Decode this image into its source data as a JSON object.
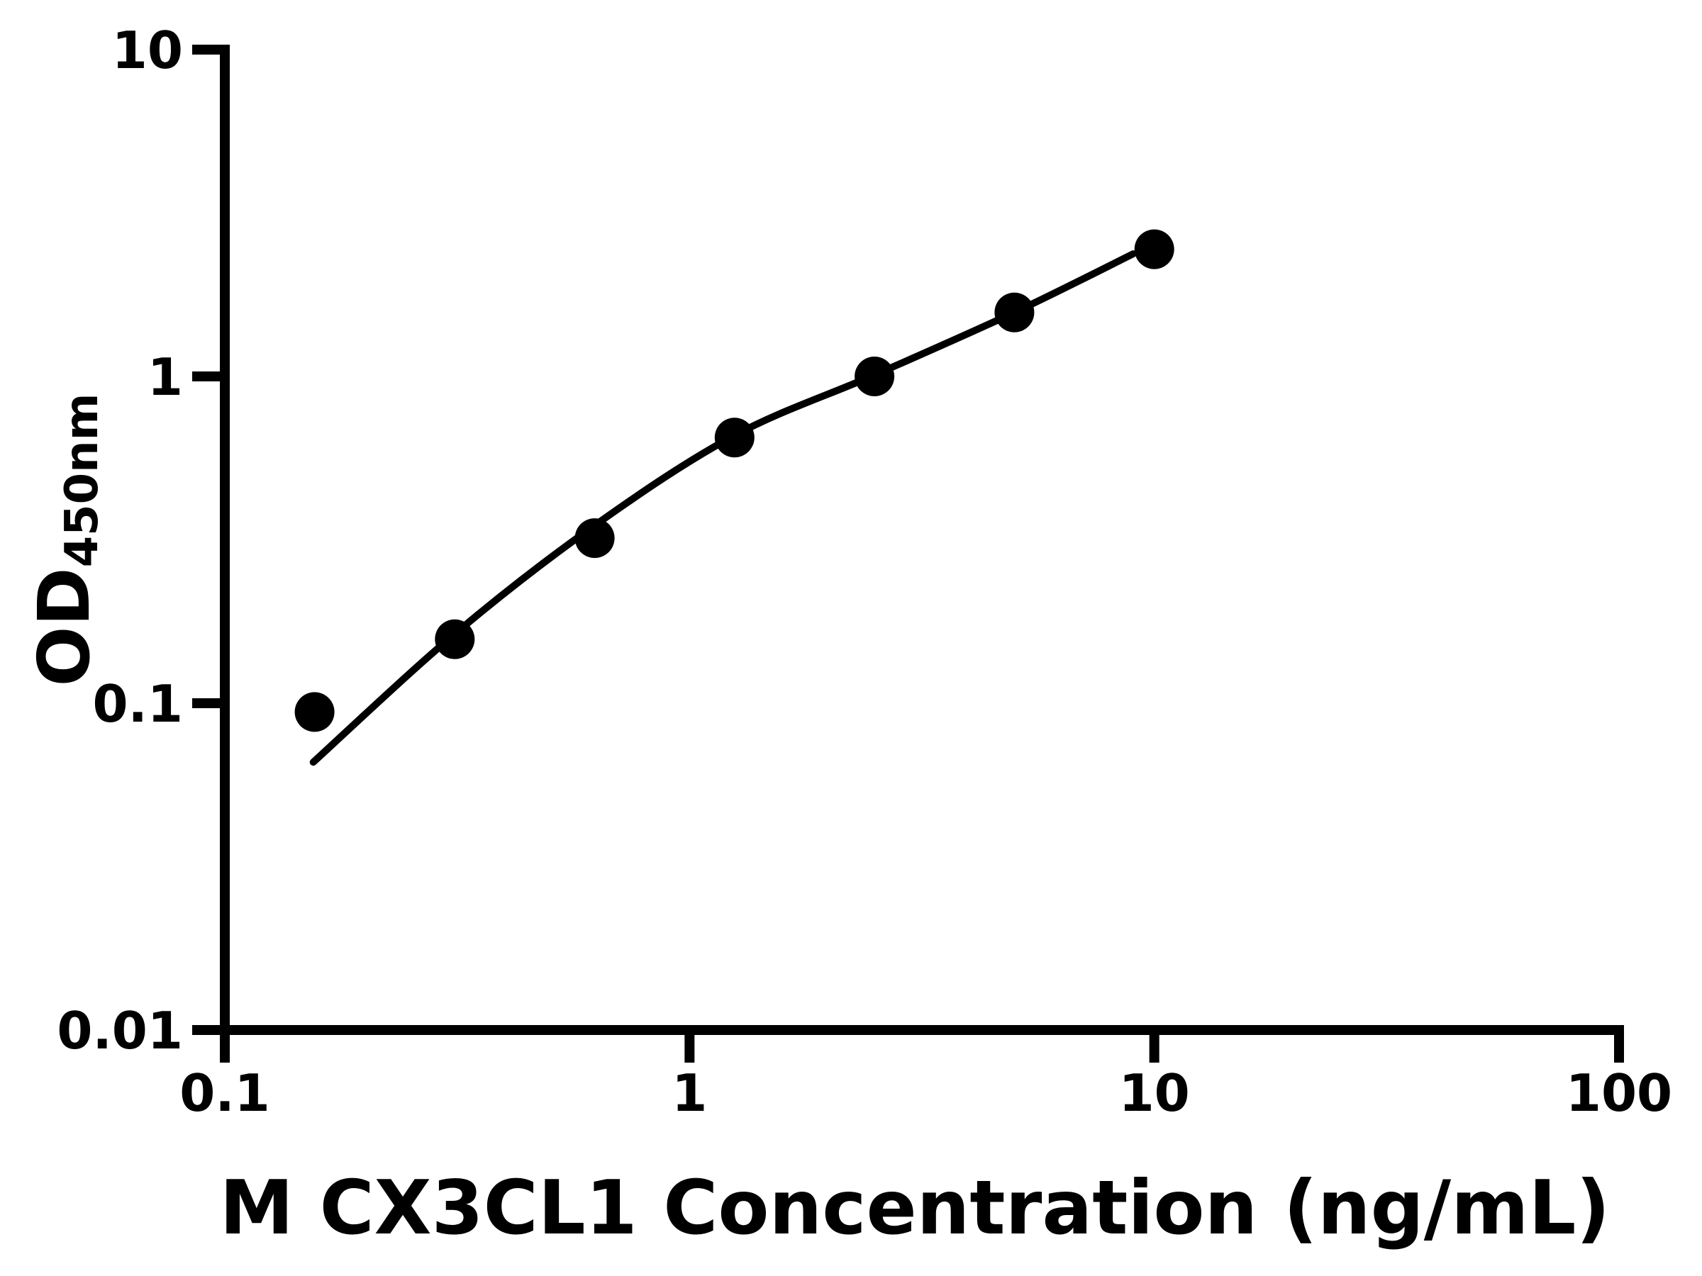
{
  "figure": {
    "background": "#ffffff",
    "foreground": "#000000"
  },
  "chart_data": {
    "type": "scatter",
    "title": "",
    "xlabel": "M CX3CL1 Concentration (ng/mL)",
    "ylabel_main": "OD",
    "ylabel_sub": "450nm",
    "x_scale": "log",
    "y_scale": "log",
    "xlim": [
      0.1,
      100
    ],
    "ylim": [
      0.01,
      10
    ],
    "x_tick_values": [
      0.1,
      1,
      10,
      100
    ],
    "x_tick_labels": [
      "0.1",
      "1",
      "10",
      "100"
    ],
    "y_tick_values": [
      10,
      1,
      0.1,
      0.01
    ],
    "y_tick_labels": [
      "10",
      "1",
      "0.1",
      "0.01"
    ],
    "grid": false,
    "legend": false,
    "marker_color": "#000000",
    "curve_color": "#000000",
    "series": [
      {
        "name": "standard-curve-points",
        "marker": "circle",
        "points": [
          {
            "x": 0.156,
            "y": 0.094
          },
          {
            "x": 0.3125,
            "y": 0.157
          },
          {
            "x": 0.625,
            "y": 0.32
          },
          {
            "x": 1.25,
            "y": 0.65
          },
          {
            "x": 2.5,
            "y": 1.0
          },
          {
            "x": 5,
            "y": 1.57
          },
          {
            "x": 10,
            "y": 2.45
          }
        ]
      }
    ],
    "fit_curve": {
      "name": "four-parameter-logistic-fit",
      "points": [
        [
          0.155,
          0.066
        ],
        [
          0.3125,
          0.163
        ],
        [
          0.625,
          0.35
        ],
        [
          1.25,
          0.66
        ],
        [
          2.5,
          1.01
        ],
        [
          5,
          1.57
        ],
        [
          9.0,
          2.37
        ]
      ]
    }
  }
}
